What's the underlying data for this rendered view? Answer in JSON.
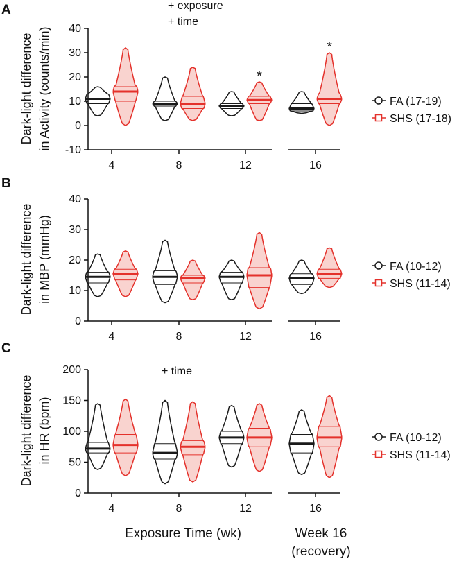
{
  "colors": {
    "fa": "#1a1a1a",
    "shs": "#e4312b",
    "shs_fill": "#f9d3cf",
    "axis": "#111111"
  },
  "x_title": "Exposure Time (wk)",
  "recovery_title_line1": "Week 16",
  "recovery_title_line2": "(recovery)",
  "chart_data": [
    {
      "panel": "A",
      "type": "violin",
      "ylabel_line1": "Dark-light difference",
      "ylabel_line2": "in Activity (counts/min)",
      "ylim": [
        -10,
        40
      ],
      "yticks": [
        "-10",
        "0",
        "10",
        "20",
        "30",
        "40"
      ],
      "annotations": [
        "+ exposure",
        "+ time"
      ],
      "categories": [
        "4",
        "8",
        "12",
        "16"
      ],
      "significance": [
        "",
        "",
        "*",
        "*"
      ],
      "legend": [
        "FA (17-19)",
        "SHS (17-18)"
      ],
      "series": [
        {
          "name": "FA",
          "min": [
            4,
            2,
            4,
            5
          ],
          "q1": [
            9,
            8,
            7,
            6
          ],
          "median": [
            11,
            9,
            8,
            7
          ],
          "q3": [
            13,
            10,
            9,
            9
          ],
          "max": [
            16,
            20,
            14,
            14
          ]
        },
        {
          "name": "SHS",
          "min": [
            0,
            2,
            2,
            0
          ],
          "q1": [
            10,
            7,
            9,
            9
          ],
          "median": [
            14,
            9,
            10.5,
            11
          ],
          "q3": [
            16,
            12,
            12,
            13
          ],
          "max": [
            32,
            24,
            18,
            30
          ]
        }
      ]
    },
    {
      "panel": "B",
      "type": "violin",
      "ylabel_line1": "Dark-light difference",
      "ylabel_line2": "in MBP (mmHg)",
      "ylim": [
        0,
        40
      ],
      "yticks": [
        "0",
        "10",
        "20",
        "30",
        "40"
      ],
      "annotations": [],
      "categories": [
        "4",
        "8",
        "12",
        "16"
      ],
      "significance": [
        "",
        "",
        "",
        ""
      ],
      "legend": [
        "FA (10-12)",
        "SHS (11-14)"
      ],
      "series": [
        {
          "name": "FA",
          "min": [
            8,
            6,
            7,
            9
          ],
          "q1": [
            12.5,
            12,
            12.5,
            12
          ],
          "median": [
            14.5,
            14.5,
            14.5,
            14
          ],
          "q3": [
            16,
            16.5,
            16,
            15.5
          ],
          "max": [
            22,
            26.5,
            20,
            20
          ]
        },
        {
          "name": "SHS",
          "min": [
            8,
            7,
            4,
            11
          ],
          "q1": [
            13.5,
            12.5,
            11,
            14
          ],
          "median": [
            15.5,
            14,
            15,
            15.5
          ],
          "q3": [
            17,
            15,
            17.5,
            17
          ],
          "max": [
            23,
            20,
            29,
            24
          ]
        }
      ]
    },
    {
      "panel": "C",
      "type": "violin",
      "ylabel_line1": "Dark-light difference",
      "ylabel_line2": "in HR (bpm)",
      "ylim": [
        0,
        200
      ],
      "yticks": [
        "0",
        "50",
        "100",
        "150",
        "200"
      ],
      "annotations": [
        "+ time"
      ],
      "categories": [
        "4",
        "8",
        "12",
        "16"
      ],
      "significance": [
        "",
        "",
        "",
        ""
      ],
      "legend": [
        "FA (10-12)",
        "SHS (11-14)"
      ],
      "series": [
        {
          "name": "FA",
          "min": [
            38,
            15,
            42,
            30
          ],
          "q1": [
            65,
            55,
            80,
            65
          ],
          "median": [
            72,
            65,
            90,
            80
          ],
          "q3": [
            82,
            80,
            100,
            95
          ],
          "max": [
            145,
            150,
            142,
            135
          ]
        },
        {
          "name": "SHS",
          "min": [
            28,
            18,
            35,
            25
          ],
          "q1": [
            65,
            62,
            75,
            75
          ],
          "median": [
            78,
            75,
            90,
            90
          ],
          "q3": [
            95,
            85,
            105,
            108
          ],
          "max": [
            152,
            148,
            145,
            158
          ]
        }
      ]
    }
  ]
}
